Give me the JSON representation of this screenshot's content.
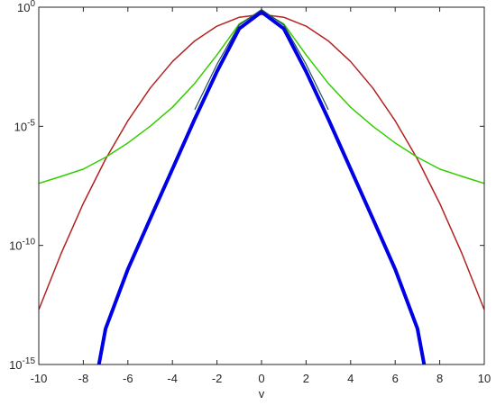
{
  "chart_data": {
    "type": "line",
    "xlabel": "v",
    "xlim": [
      -10,
      10
    ],
    "xticks": [
      -10,
      -8,
      -6,
      -4,
      -2,
      0,
      2,
      4,
      6,
      8,
      10
    ],
    "ylim": [
      1e-15,
      1
    ],
    "yscale": "log",
    "yticks": [
      {
        "value": 1,
        "label": "10^0"
      },
      {
        "value": 1e-05,
        "label": "10^-5"
      },
      {
        "value": 1e-10,
        "label": "10^-10"
      },
      {
        "value": 1e-15,
        "label": "10^-15"
      }
    ],
    "grid": false,
    "series": [
      {
        "color": "#b22222",
        "width": 1.5,
        "x": [
          -10,
          -9,
          -8,
          -7,
          -6,
          -5,
          -4,
          -3,
          -2,
          -1,
          0,
          1,
          2,
          3,
          4,
          5,
          6,
          7,
          8,
          9,
          10
        ],
        "values": [
          2e-13,
          4.5e-11,
          5.8e-09,
          4.2e-07,
          1.7e-05,
          0.0004,
          0.0052,
          0.0384,
          0.16,
          0.377,
          0.5,
          0.377,
          0.16,
          0.0384,
          0.0052,
          0.0004,
          1.7e-05,
          4.2e-07,
          5.8e-09,
          4.5e-11,
          2e-13
        ]
      },
      {
        "color": "#33cc00",
        "width": 1.5,
        "x": [
          -10,
          -9,
          -8,
          -7,
          -6,
          -5,
          -4,
          -3,
          -2,
          -1,
          0,
          1,
          2,
          3,
          4,
          5,
          6,
          7,
          8,
          9,
          10
        ],
        "values": [
          4e-08,
          7.9e-08,
          1.6e-07,
          5e-07,
          2e-06,
          1e-05,
          6.3e-05,
          0.00063,
          0.01,
          0.2,
          0.7,
          0.2,
          0.01,
          0.00063,
          6.3e-05,
          1e-05,
          2e-06,
          5e-07,
          1.6e-07,
          7.9e-08,
          4e-08
        ]
      },
      {
        "color": "#0000e6",
        "width": 4,
        "x": [
          -7.3,
          -7,
          -6,
          -5,
          -4,
          -3,
          -2,
          -1,
          0,
          1,
          2,
          3,
          4,
          5,
          6,
          7,
          7.3
        ],
        "values": [
          1e-15,
          3.2e-14,
          1e-11,
          1.3e-09,
          1.6e-07,
          2e-05,
          0.002,
          0.126,
          0.63,
          0.126,
          0.002,
          2e-05,
          1.6e-07,
          1.3e-09,
          1e-11,
          3.2e-14,
          1e-15
        ]
      },
      {
        "color": "#1f4e5f",
        "width": 1.2,
        "x": [
          -3,
          -2,
          -1,
          0,
          1,
          2,
          3
        ],
        "values": [
          5e-05,
          0.004,
          0.18,
          0.8,
          0.18,
          0.004,
          5e-05
        ]
      }
    ]
  }
}
